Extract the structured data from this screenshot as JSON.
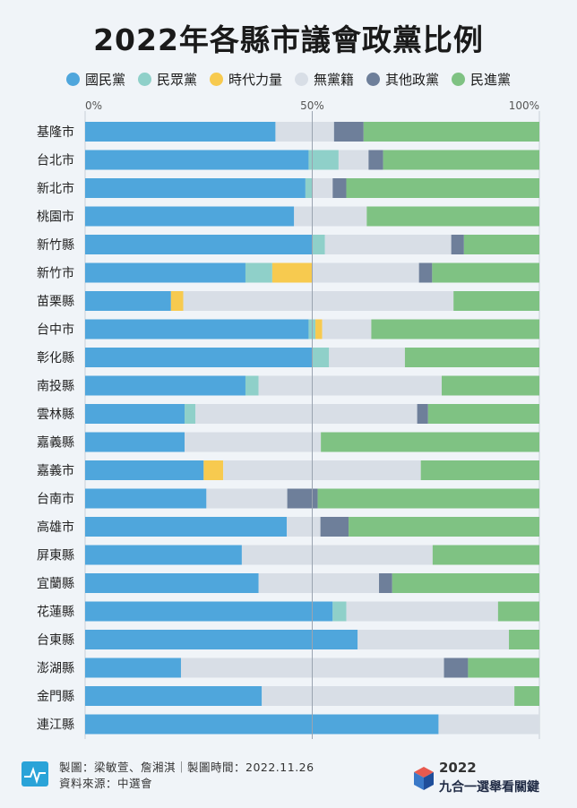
{
  "title": "2022年各縣市議會政黨比例",
  "colors": {
    "國民黨": "#4fa6dc",
    "民眾黨": "#8fd0c9",
    "時代力量": "#f7ca4f",
    "無黨籍": "#d8dee6",
    "其他政黨": "#6e7f9a",
    "民進黨": "#7fc283"
  },
  "chart_data": {
    "type": "bar",
    "orientation": "horizontal",
    "stacked": true,
    "x_ticks": [
      "0%",
      "50%",
      "100%"
    ],
    "xlim": [
      0,
      100
    ],
    "legend_position": "top",
    "categories": [
      "基隆市",
      "台北市",
      "新北市",
      "桃園市",
      "新竹縣",
      "新竹市",
      "苗栗縣",
      "台中市",
      "彰化縣",
      "南投縣",
      "雲林縣",
      "嘉義縣",
      "嘉義市",
      "台南市",
      "高雄市",
      "屏東縣",
      "宜蘭縣",
      "花蓮縣",
      "台東縣",
      "澎湖縣",
      "金門縣",
      "連江縣"
    ],
    "series": [
      {
        "name": "國民黨",
        "values": [
          41.9,
          49.2,
          48.5,
          46.0,
          50.0,
          35.3,
          18.9,
          49.2,
          50.0,
          35.3,
          21.9,
          21.9,
          26.1,
          26.7,
          44.4,
          34.5,
          38.2,
          54.5,
          60.0,
          21.1,
          38.9,
          77.8
        ]
      },
      {
        "name": "民眾黨",
        "values": [
          0,
          6.6,
          1.5,
          0,
          2.8,
          5.9,
          0,
          1.5,
          3.7,
          2.9,
          2.4,
          0,
          0,
          0,
          0,
          0,
          0,
          3.0,
          0,
          0,
          0,
          0
        ]
      },
      {
        "name": "時代力量",
        "values": [
          0,
          0,
          0,
          0,
          0,
          8.8,
          2.7,
          1.5,
          0,
          0,
          0,
          0,
          4.3,
          0,
          0,
          0,
          0,
          0,
          0,
          0,
          0,
          0
        ]
      },
      {
        "name": "無黨籍",
        "values": [
          12.9,
          6.6,
          4.5,
          16.0,
          27.8,
          23.5,
          59.5,
          10.8,
          16.7,
          40.3,
          48.8,
          30.0,
          43.5,
          17.8,
          7.4,
          42.0,
          26.5,
          33.4,
          33.3,
          57.9,
          55.6,
          22.2
        ]
      },
      {
        "name": "其他政黨",
        "values": [
          6.5,
          3.2,
          3.0,
          0,
          2.8,
          2.9,
          0,
          0,
          0,
          0,
          2.4,
          0,
          0,
          6.7,
          6.2,
          0,
          2.9,
          0,
          0,
          5.3,
          0,
          0
        ]
      },
      {
        "name": "民進黨",
        "values": [
          38.7,
          34.4,
          42.5,
          38.0,
          16.6,
          23.6,
          18.9,
          37.0,
          29.6,
          21.5,
          24.5,
          48.1,
          26.1,
          48.8,
          42.0,
          23.5,
          32.4,
          9.1,
          6.7,
          15.7,
          5.5,
          0
        ]
      }
    ]
  },
  "footer": {
    "credit_line1": "製圖：梁敏萱、詹湘淇｜製圖時間：2022.11.26",
    "credit_line2": "資料來源：中選會",
    "brand_year": "2022",
    "brand_name": "九合一選舉看關鍵"
  }
}
